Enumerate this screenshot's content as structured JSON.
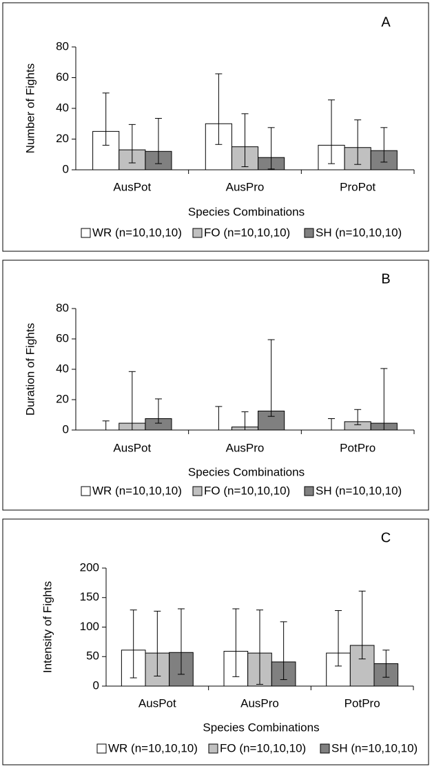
{
  "chart_data": [
    {
      "type": "bar",
      "label": "A",
      "x_label": "Species Combinations",
      "y_label": "Number of Fights",
      "categories": [
        "AusPot",
        "AusPro",
        "ProPot"
      ],
      "series": [
        {
          "name": "WR (n=10,10,10)",
          "color": "#ffffff",
          "values": [
            25,
            30,
            16
          ],
          "lower": [
            16,
            16.5,
            4
          ],
          "upper": [
            50,
            62.5,
            45.5
          ]
        },
        {
          "name": "FO (n=10,10,10)",
          "color": "#c0c0c0",
          "values": [
            13,
            15,
            14.5
          ],
          "lower": [
            4.5,
            2,
            3.5
          ],
          "upper": [
            29.5,
            36.5,
            32.5
          ]
        },
        {
          "name": "SH (n=10,10,10)",
          "color": "#808080",
          "values": [
            12,
            8,
            12.5
          ],
          "lower": [
            4,
            0.5,
            5
          ],
          "upper": [
            33.5,
            27.5,
            27.5
          ]
        }
      ],
      "ylim": [
        0,
        80
      ],
      "yticks": [
        0,
        20,
        40,
        60,
        80
      ]
    },
    {
      "type": "bar",
      "label": "B",
      "x_label": "Species Combinations",
      "y_label": "Duration of Fights",
      "categories": [
        "AusPot",
        "AusPro",
        "PotPro"
      ],
      "series": [
        {
          "name": "WR (n=10,10,10)",
          "color": "#ffffff",
          "values": [
            0,
            0,
            0
          ],
          "lower": [
            0,
            0,
            0
          ],
          "upper": [
            6,
            15.5,
            7.5
          ]
        },
        {
          "name": "FO (n=10,10,10)",
          "color": "#c0c0c0",
          "values": [
            4.5,
            2,
            5.5
          ],
          "lower": [
            0,
            0,
            3.5
          ],
          "upper": [
            38.5,
            12,
            13.5
          ]
        },
        {
          "name": "SH (n=10,10,10)",
          "color": "#808080",
          "values": [
            7.5,
            12.5,
            4.5
          ],
          "lower": [
            4.5,
            9,
            0
          ],
          "upper": [
            20.5,
            59.5,
            40.5
          ]
        }
      ],
      "ylim": [
        0,
        80
      ],
      "yticks": [
        0,
        20,
        40,
        60,
        80
      ]
    },
    {
      "type": "bar",
      "label": "C",
      "x_label": "Species Combinations",
      "y_label": "Intensity of Fights",
      "categories": [
        "AusPot",
        "AusPro",
        "PotPro"
      ],
      "series": [
        {
          "name": "WR (n=10,10,10)",
          "color": "#ffffff",
          "values": [
            61,
            59,
            56
          ],
          "lower": [
            14,
            16,
            34
          ],
          "upper": [
            129,
            131,
            128
          ]
        },
        {
          "name": "FO (n=10,10,10)",
          "color": "#c0c0c0",
          "values": [
            56,
            56,
            69
          ],
          "lower": [
            17,
            3,
            46
          ],
          "upper": [
            127,
            129,
            161
          ]
        },
        {
          "name": "SH (n=10,10,10)",
          "color": "#808080",
          "values": [
            57,
            41,
            38
          ],
          "lower": [
            20,
            11,
            15
          ],
          "upper": [
            131,
            109,
            61
          ]
        }
      ],
      "ylim": [
        0,
        200
      ],
      "yticks": [
        0,
        50,
        100,
        150,
        200
      ]
    }
  ]
}
